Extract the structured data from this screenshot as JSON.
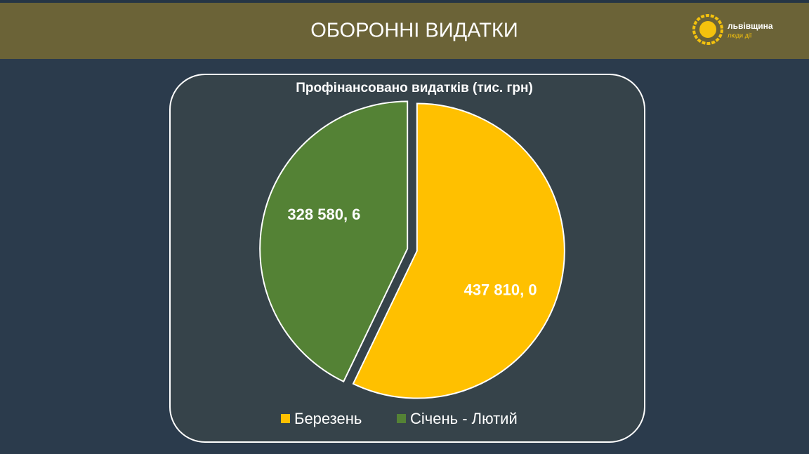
{
  "header": {
    "title": "ОБОРОННІ ВИДАТКИ",
    "logo": {
      "name": "львівщина",
      "tagline": "люди дії"
    }
  },
  "chart_data": {
    "type": "pie",
    "title": "Профінансовано видатків (тис. грн)",
    "categories": [
      "Березень",
      "Січень - Лютий"
    ],
    "values": [
      437810.0,
      328580.6
    ],
    "value_labels": [
      "437 810, 0",
      "328 580, 6"
    ],
    "colors": [
      "#ffc000",
      "#548235"
    ],
    "legend": "bottom"
  }
}
